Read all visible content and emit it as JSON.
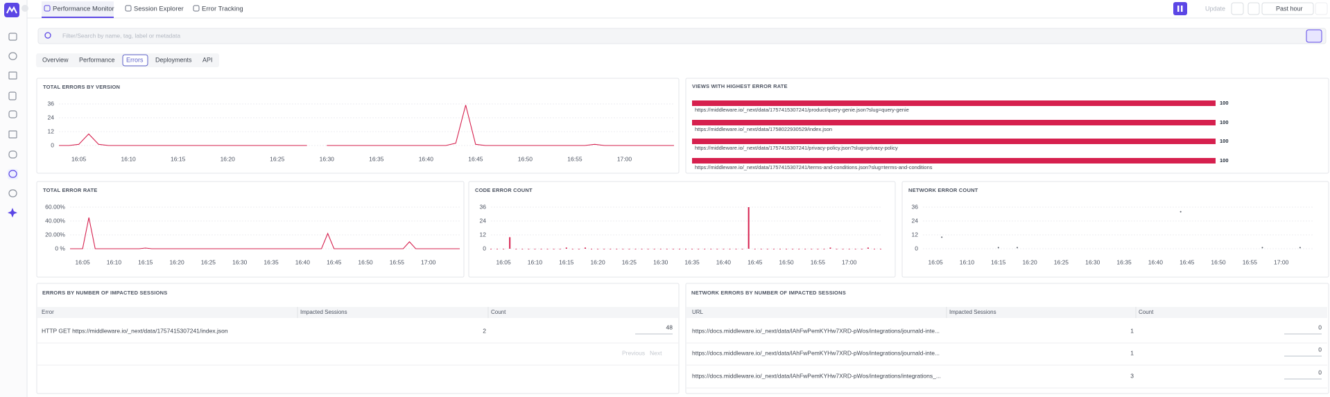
{
  "nav": {
    "tabs": [
      "Performance Monitor",
      "Session Explorer",
      "Error Tracking"
    ],
    "active_tab": 0,
    "update": "Update",
    "range": "Past hour"
  },
  "search": {
    "placeholder": "Filter/Search by name, tag, label or metadata"
  },
  "subtabs": [
    "Overview",
    "Performance",
    "Errors",
    "Deployments",
    "API"
  ],
  "active_subtab": 2,
  "timeline": {
    "x": [
      "16:03",
      "16:04",
      "16:05",
      "16:06",
      "16:07",
      "16:08",
      "16:09",
      "16:10",
      "16:11",
      "16:12",
      "16:13",
      "16:14",
      "16:15",
      "16:16",
      "16:17",
      "16:18",
      "16:19",
      "16:20",
      "16:21",
      "16:22",
      "16:23",
      "16:24",
      "16:25",
      "16:26",
      "16:27",
      "16:28",
      "16:29",
      "16:30",
      "16:31",
      "16:32",
      "16:33",
      "16:34",
      "16:35",
      "16:36",
      "16:37",
      "16:38",
      "16:39",
      "16:40",
      "16:41",
      "16:42",
      "16:43",
      "16:44",
      "16:45",
      "16:46",
      "16:47",
      "16:48",
      "16:49",
      "16:50",
      "16:51",
      "16:52",
      "16:53",
      "16:54",
      "16:55",
      "16:56",
      "16:57",
      "16:58",
      "16:59",
      "17:00",
      "17:01",
      "17:02",
      "17:03",
      "17:04",
      "17:05"
    ],
    "xticks": [
      "16:05",
      "16:10",
      "16:15",
      "16:20",
      "16:25",
      "16:30",
      "16:35",
      "16:40",
      "16:45",
      "16:50",
      "16:55",
      "17:00"
    ]
  },
  "charts": [
    {
      "type": "line",
      "title": "TOTAL ERRORS BY VERSION",
      "color": "#d6204e",
      "ylim": [
        0,
        36
      ],
      "yticks": [
        0,
        12,
        24,
        36
      ],
      "values": [
        0,
        0,
        1,
        10,
        1,
        0,
        0,
        0,
        0,
        0,
        0,
        0,
        0,
        0,
        0,
        0,
        0,
        0,
        0,
        0,
        0,
        0,
        0,
        0,
        0,
        0,
        null,
        0,
        0,
        0,
        0,
        0,
        0,
        0,
        0,
        0,
        0,
        0,
        0,
        0,
        2,
        35,
        1,
        0,
        0,
        0,
        0,
        0,
        0,
        0,
        0,
        0,
        0,
        0,
        1,
        0,
        0,
        0,
        0,
        0,
        0,
        0,
        0
      ]
    },
    {
      "type": "line",
      "title": "TOTAL ERROR RATE",
      "color": "#d6204e",
      "ylim": [
        0,
        60
      ],
      "yticks": [
        {
          "value": 0,
          "label": "0 %"
        },
        {
          "value": 20,
          "label": "20.00%"
        },
        {
          "value": 40,
          "label": "40.00%"
        },
        {
          "value": 60,
          "label": "60.00%"
        }
      ],
      "values": [
        0,
        0,
        0,
        45,
        0,
        0,
        0,
        0,
        0,
        0,
        0,
        0,
        1,
        0,
        0,
        0,
        0,
        0,
        0,
        0,
        0,
        0,
        0,
        0,
        0,
        0,
        0,
        0,
        0,
        0,
        0,
        0,
        0,
        0,
        0,
        0,
        0,
        0,
        0,
        0,
        0,
        22,
        0,
        0,
        0,
        0,
        0,
        0,
        0,
        0,
        0,
        0,
        0,
        0,
        10,
        0,
        0,
        0,
        0,
        0,
        0,
        0,
        0
      ]
    },
    {
      "type": "bar",
      "title": "CODE ERROR COUNT",
      "color": "#d6204e",
      "ylim": [
        0,
        36
      ],
      "yticks": [
        0,
        12,
        24,
        36
      ],
      "values": [
        0,
        0,
        0,
        10,
        0,
        0,
        0,
        0,
        0,
        0,
        0,
        0,
        1,
        0,
        0,
        1,
        0,
        0,
        0,
        0,
        0,
        0,
        0,
        0,
        0,
        0,
        0,
        0,
        0,
        0,
        0,
        0,
        0,
        0,
        0,
        0,
        0,
        0,
        0,
        0,
        0,
        36,
        0,
        0,
        0,
        0,
        0,
        0,
        0,
        0,
        0,
        0,
        0,
        0,
        1,
        0,
        0,
        0,
        0,
        0,
        1,
        0,
        0
      ]
    },
    {
      "type": "scatter",
      "title": "NETWORK ERROR COUNT",
      "color": "#555b66",
      "ylim": [
        0,
        36
      ],
      "yticks": [
        0,
        12,
        24,
        36
      ],
      "values": [
        null,
        null,
        null,
        10,
        null,
        null,
        null,
        null,
        null,
        null,
        null,
        null,
        1,
        null,
        null,
        1,
        null,
        null,
        null,
        null,
        null,
        null,
        null,
        null,
        null,
        null,
        null,
        null,
        null,
        null,
        null,
        null,
        null,
        null,
        null,
        null,
        null,
        null,
        null,
        null,
        null,
        32,
        null,
        null,
        null,
        null,
        null,
        null,
        null,
        null,
        null,
        null,
        null,
        null,
        1,
        null,
        null,
        null,
        null,
        null,
        1,
        null,
        null
      ]
    }
  ],
  "views": {
    "title": "VIEWS WITH HIGHEST ERROR RATE",
    "color": "#d6204e",
    "xlim": [
      0,
      100
    ],
    "rows": [
      {
        "url": "https://middleware.io/_next/data/1757415307241/product/query-genie.json?slug=query-genie",
        "value": 100
      },
      {
        "url": "https://middleware.io/_next/data/1758022930529/index.json",
        "value": 100
      },
      {
        "url": "https://middleware.io/_next/data/1757415307241/privacy-policy.json?slug=privacy-policy",
        "value": 100
      },
      {
        "url": "https://middleware.io/_next/data/1757415307241/terms-and-conditions.json?slug=terms-and-conditions",
        "value": 100
      }
    ]
  },
  "errors_table": {
    "title": "ERRORS BY NUMBER OF IMPACTED SESSIONS",
    "columns": [
      "Error",
      "Impacted Sessions",
      "Count"
    ],
    "rows": [
      [
        "HTTP GET https://middleware.io/_next/data/1757415307241/index.json",
        2,
        48
      ]
    ],
    "pagination": [
      "Previous",
      "Next"
    ]
  },
  "network_table": {
    "title": "NETWORK ERRORS BY NUMBER OF IMPACTED SESSIONS",
    "columns": [
      "URL",
      "Impacted Sessions",
      "Count"
    ],
    "rows": [
      [
        "https://docs.middleware.io/_next/data/lAhFwPemKYHw7XRD-pWos/integrations/journald-inte...",
        1,
        0
      ],
      [
        "https://docs.middleware.io/_next/data/lAhFwPemKYHw7XRD-pWos/integrations/journald-inte...",
        1,
        0
      ],
      [
        "https://docs.middleware.io/_next/data/lAhFwPemKYHw7XRD-pWos/integrations/integrations_...",
        3,
        0
      ]
    ]
  }
}
